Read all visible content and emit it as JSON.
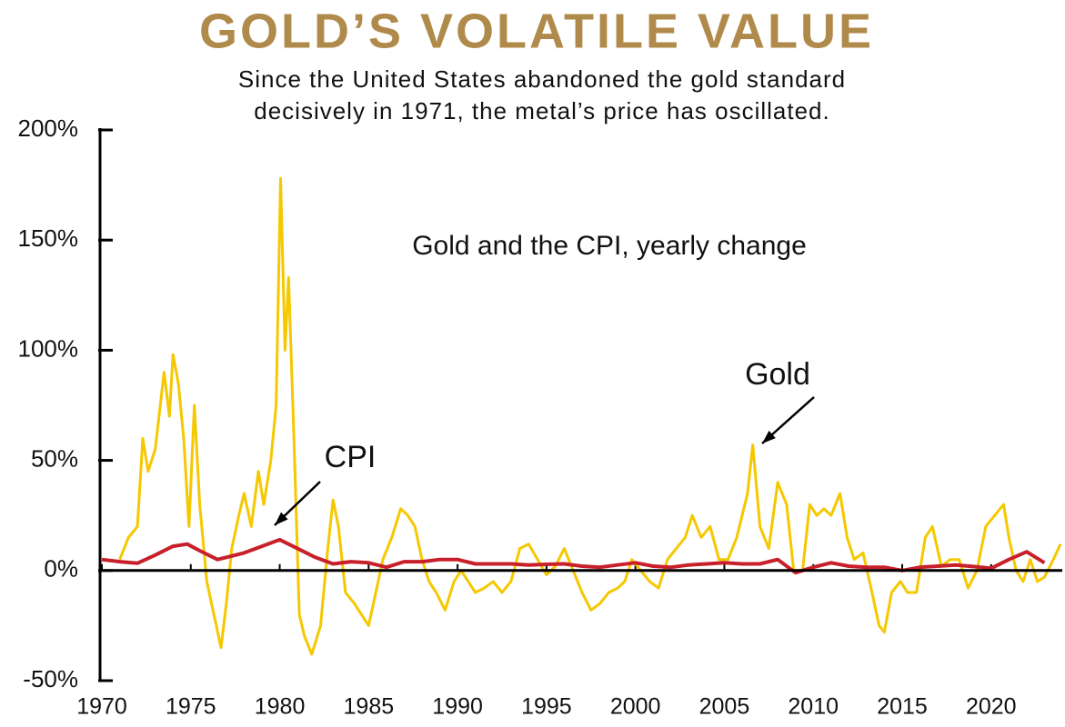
{
  "chart_data": {
    "type": "line",
    "title": "GOLD’S VOLATILE VALUE",
    "subtitle": [
      "Since the United States abandoned the gold standard",
      "decisively in 1971, the metal’s price has oscillated."
    ],
    "annotation": "Gold and the CPI, yearly change",
    "xlim": [
      1970,
      2024
    ],
    "xticks": [
      1970,
      1975,
      1980,
      1985,
      1990,
      1995,
      2000,
      2005,
      2010,
      2015,
      2020
    ],
    "ylim": [
      -50,
      200
    ],
    "yticks": [
      {
        "value": -50,
        "label": "-50%"
      },
      {
        "value": 0,
        "label": "0%"
      },
      {
        "value": 50,
        "label": "50%"
      },
      {
        "value": 100,
        "label": "100%"
      },
      {
        "value": 150,
        "label": "150%"
      },
      {
        "value": 200,
        "label": "200%"
      }
    ],
    "series": [
      {
        "name": "Gold",
        "color": "#f5c800",
        "x": [
          1971.0,
          1971.5,
          1972.0,
          1972.3,
          1972.6,
          1973.0,
          1973.5,
          1973.8,
          1974.0,
          1974.3,
          1974.6,
          1974.9,
          1975.2,
          1975.5,
          1975.9,
          1976.3,
          1976.7,
          1977.0,
          1977.3,
          1977.7,
          1978.0,
          1978.4,
          1978.8,
          1979.1,
          1979.5,
          1979.8,
          1980.05,
          1980.3,
          1980.5,
          1980.8,
          1981.1,
          1981.4,
          1981.8,
          1982.3,
          1982.7,
          1983.0,
          1983.3,
          1983.7,
          1984.2,
          1984.6,
          1985.0,
          1985.4,
          1985.8,
          1986.3,
          1986.8,
          1987.2,
          1987.6,
          1988.0,
          1988.4,
          1988.8,
          1989.3,
          1989.8,
          1990.2,
          1990.6,
          1991.0,
          1991.5,
          1992.0,
          1992.5,
          1993.0,
          1993.5,
          1994.0,
          1994.5,
          1995.0,
          1995.5,
          1996.0,
          1996.5,
          1997.0,
          1997.5,
          1998.0,
          1998.5,
          1999.0,
          1999.4,
          1999.8,
          2000.3,
          2000.8,
          2001.3,
          2001.8,
          2002.3,
          2002.8,
          2003.2,
          2003.7,
          2004.2,
          2004.7,
          2005.2,
          2005.7,
          2006.3,
          2006.6,
          2007.0,
          2007.5,
          2008.0,
          2008.5,
          2008.9,
          2009.4,
          2009.8,
          2010.2,
          2010.6,
          2011.0,
          2011.5,
          2011.9,
          2012.3,
          2012.8,
          2013.3,
          2013.7,
          2014.0,
          2014.4,
          2014.9,
          2015.3,
          2015.8,
          2016.3,
          2016.7,
          2017.2,
          2017.7,
          2018.2,
          2018.7,
          2019.2,
          2019.7,
          2020.2,
          2020.7,
          2021.0,
          2021.4,
          2021.8,
          2022.2,
          2022.6,
          2023.0,
          2023.5,
          2023.9
        ],
        "values": [
          5,
          15,
          20,
          60,
          45,
          55,
          90,
          70,
          98,
          85,
          60,
          20,
          75,
          30,
          -5,
          -20,
          -35,
          -15,
          10,
          25,
          35,
          20,
          45,
          30,
          50,
          75,
          178,
          100,
          133,
          60,
          -20,
          -30,
          -38,
          -25,
          10,
          32,
          20,
          -10,
          -15,
          -20,
          -25,
          -10,
          5,
          15,
          28,
          25,
          20,
          5,
          -5,
          -10,
          -18,
          -5,
          0,
          -5,
          -10,
          -8,
          -5,
          -10,
          -5,
          10,
          12,
          5,
          -2,
          2,
          10,
          0,
          -10,
          -18,
          -15,
          -10,
          -8,
          -5,
          5,
          0,
          -5,
          -8,
          5,
          10,
          15,
          25,
          15,
          20,
          5,
          5,
          15,
          35,
          57,
          20,
          10,
          40,
          30,
          0,
          0,
          30,
          25,
          28,
          25,
          35,
          15,
          5,
          8,
          -10,
          -25,
          -28,
          -10,
          -5,
          -10,
          -10,
          15,
          20,
          2,
          5,
          5,
          -8,
          0,
          20,
          25,
          30,
          15,
          0,
          -5,
          5,
          -5,
          -3,
          5,
          12
        ]
      },
      {
        "name": "CPI",
        "color": "#c8202a",
        "x": [
          1970,
          1971,
          1972,
          1973,
          1974,
          1974.8,
          1975.5,
          1976.5,
          1977,
          1978,
          1979,
          1980,
          1981,
          1982,
          1983,
          1984,
          1985,
          1986,
          1987,
          1988,
          1989,
          1990,
          1991,
          1992,
          1993,
          1994,
          1995,
          1996,
          1997,
          1998,
          1999,
          2000,
          2001,
          2002,
          2003,
          2004,
          2005,
          2006,
          2007,
          2008,
          2009,
          2010,
          2011,
          2012,
          2013,
          2014,
          2015,
          2016,
          2017,
          2018,
          2019,
          2020,
          2021,
          2022,
          2023
        ],
        "values": [
          5,
          4,
          3.3,
          7,
          11,
          12,
          9,
          5,
          6,
          8,
          11,
          14,
          10,
          6,
          3,
          4,
          3.5,
          1.5,
          4,
          4,
          5,
          5,
          3,
          3,
          3,
          2.5,
          2.8,
          3,
          2,
          1.5,
          2.5,
          3.5,
          2,
          1.5,
          2.5,
          3,
          3.5,
          3,
          3,
          5,
          -1,
          1.5,
          3.5,
          2,
          1.5,
          1.5,
          0,
          1.5,
          2,
          2.5,
          1.8,
          1,
          5,
          8.5,
          3.5
        ]
      }
    ]
  }
}
